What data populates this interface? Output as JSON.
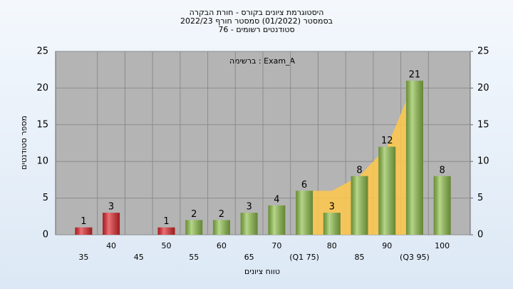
{
  "chart_data": {
    "type": "bar",
    "title": "היסטוגרמת ציונים בקורס - חורת הבקרה",
    "subtitle": "בסמסטר  (01/2022)  סמסטר חורף 2022/23",
    "subtitle2": "סטודנטים רשומים - 76",
    "annotation": "ברשימה : Exam_A",
    "ylabel": "מספר סטודנטים",
    "xlabel": "טווח ציונים",
    "categories": [
      "35",
      "40",
      "45",
      "50",
      "55",
      "60",
      "65",
      "70",
      "(Q1 75)",
      "80",
      "85",
      "90",
      "(Q3 95)",
      "100"
    ],
    "values": [
      1,
      3,
      null,
      1,
      2,
      2,
      3,
      4,
      6,
      3,
      8,
      12,
      21,
      8
    ],
    "colors": [
      "#e0262b",
      "#e0262b",
      null,
      "#e0262b",
      "#8fc04a",
      "#8fc04a",
      "#8fc04a",
      "#8fc04a",
      "#8fc04a",
      "#8fc04a",
      "#8fc04a",
      "#8fc04a",
      "#8fc04a",
      "#8fc04a"
    ],
    "area_values": [
      null,
      null,
      null,
      null,
      null,
      null,
      null,
      null,
      6,
      6,
      8,
      12,
      21,
      null
    ],
    "area_color": "#ffc84a",
    "ylim": [
      0,
      25
    ],
    "yticks": [
      0,
      5,
      10,
      15,
      20,
      25
    ],
    "y2lim": [
      0,
      25
    ],
    "y2ticks": [
      0,
      5,
      10,
      15,
      20,
      25
    ],
    "grid": true
  }
}
